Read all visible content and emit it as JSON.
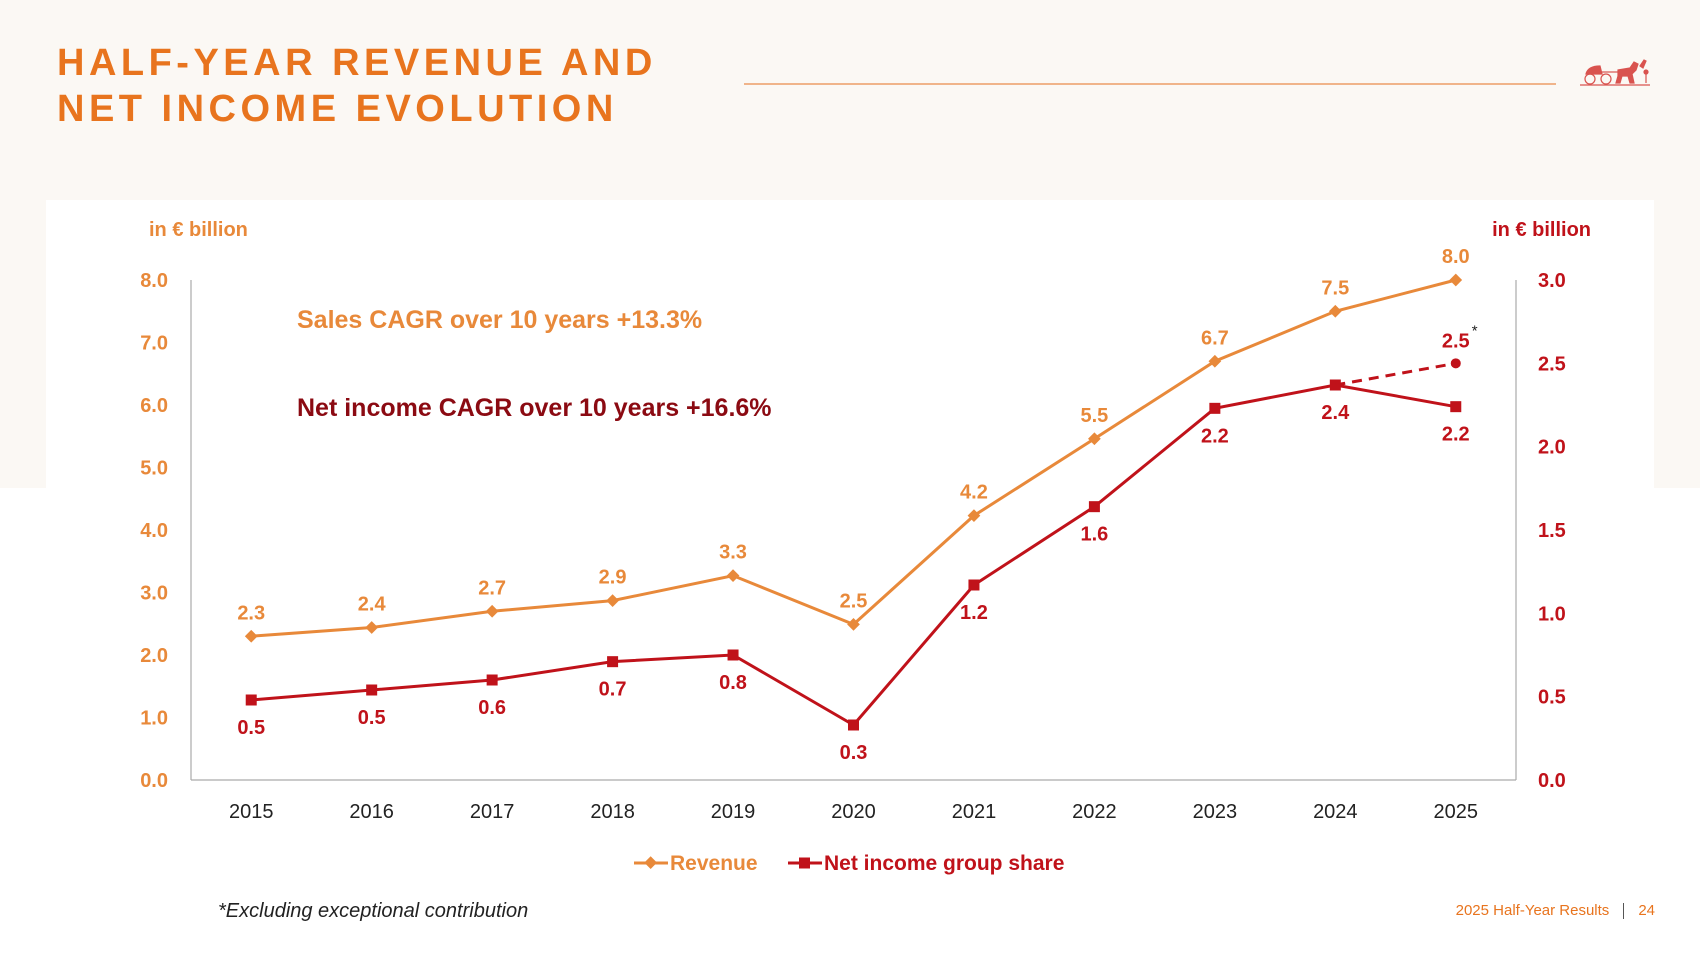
{
  "title": {
    "line1": "HALF-YEAR REVENUE AND",
    "line2": "NET INCOME EVOLUTION"
  },
  "footnote": "*Excluding exceptional contribution",
  "footer": {
    "label": "2025 Half-Year Results",
    "page": "24"
  },
  "colors": {
    "accent": "#e8741e",
    "revenue": "#e8893a",
    "net_income": "#c0121a",
    "dark_red": "#8b0a12"
  },
  "icons": {
    "logo": "horse-carriage-logo"
  },
  "chart_data": {
    "type": "line",
    "categories": [
      "2015",
      "2016",
      "2017",
      "2018",
      "2019",
      "2020",
      "2021",
      "2022",
      "2023",
      "2024",
      "2025"
    ],
    "ylabel_left": "in € billion",
    "ylabel_right": "in € billion",
    "ylim_left": [
      0,
      8
    ],
    "ylim_right": [
      0,
      3
    ],
    "yticks_left": [
      "0.0",
      "1.0",
      "2.0",
      "3.0",
      "4.0",
      "5.0",
      "6.0",
      "7.0",
      "8.0"
    ],
    "yticks_right": [
      "0.0",
      "0.5",
      "1.0",
      "1.5",
      "2.0",
      "2.5",
      "3.0"
    ],
    "annotations": [
      "Sales CAGR over 10 years +13.3%",
      "Net income CAGR over 10 years +16.6%"
    ],
    "series": [
      {
        "name": "Revenue",
        "axis": "left",
        "values": [
          2.3,
          2.44,
          2.7,
          2.87,
          3.27,
          2.49,
          4.23,
          5.46,
          6.7,
          7.5,
          8.0
        ],
        "labels": [
          "2.3",
          "2.4",
          "2.7",
          "2.9",
          "3.3",
          "2.5",
          "4.2",
          "5.5",
          "6.7",
          "7.5",
          "8.0"
        ]
      },
      {
        "name": "Net income group share",
        "axis": "right",
        "values": [
          0.48,
          0.54,
          0.6,
          0.71,
          0.75,
          0.33,
          1.17,
          1.64,
          2.23,
          2.37,
          2.24
        ],
        "labels": [
          "0.5",
          "0.5",
          "0.6",
          "0.7",
          "0.8",
          "0.3",
          "1.2",
          "1.6",
          "2.2",
          "2.4",
          "2.2"
        ]
      }
    ],
    "adjusted_point": {
      "category": "2025",
      "value": 2.5,
      "label": "2.5",
      "marker": "*"
    },
    "legend": "bottom-center",
    "grid": false
  }
}
